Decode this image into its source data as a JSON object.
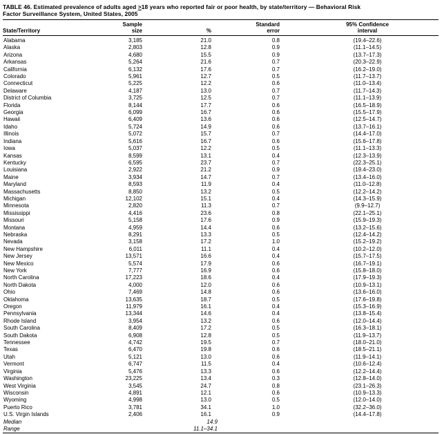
{
  "page": {
    "title_pre": "TABLE 46. Estimated prevalence of adults aged ",
    "title_geq": ">",
    "title_post": "18 years who reported fair or poor health, by state/territory — Behavioral Risk\nFactor Surveillance System, United States, 2005"
  },
  "table": {
    "columns": [
      {
        "key": "state",
        "label": "State/Territory"
      },
      {
        "key": "sample",
        "label": "Sample\nsize"
      },
      {
        "key": "pct",
        "label": "%"
      },
      {
        "key": "se",
        "label": "Standard\nerror"
      },
      {
        "key": "ci",
        "label": "95% Confidence\ninterval"
      }
    ],
    "rows": [
      {
        "state": "Alabama",
        "sample": "3,185",
        "pct": "21.0",
        "se": "0.8",
        "ci": "(19.4–22.6)"
      },
      {
        "state": "Alaska",
        "sample": "2,803",
        "pct": "12.8",
        "se": "0.9",
        "ci": "(11.1–14.5)"
      },
      {
        "state": "Arizona",
        "sample": "4,680",
        "pct": "15.5",
        "se": "0.9",
        "ci": "(13.7–17.3)"
      },
      {
        "state": "Arkansas",
        "sample": "5,264",
        "pct": "21.6",
        "se": "0.7",
        "ci": "(20.3–22.9)"
      },
      {
        "state": "California",
        "sample": "6,132",
        "pct": "17.6",
        "se": "0.7",
        "ci": "(16.2–19.0)"
      },
      {
        "state": "Colorado",
        "sample": "5,961",
        "pct": "12.7",
        "se": "0.5",
        "ci": "(11.7–13.7)"
      },
      {
        "state": "Connecticut",
        "sample": "5,225",
        "pct": "12.2",
        "se": "0.6",
        "ci": "(11.0–13.4)"
      },
      {
        "state": "Delaware",
        "sample": "4,187",
        "pct": "13.0",
        "se": "0.7",
        "ci": "(11.7–14.3)"
      },
      {
        "state": "District of Columbia",
        "sample": "3,725",
        "pct": "12.5",
        "se": "0.7",
        "ci": "(11.1–13.9)"
      },
      {
        "state": "Florida",
        "sample": "8,144",
        "pct": "17.7",
        "se": "0.6",
        "ci": "(16.5–18.9)"
      },
      {
        "state": "Georgia",
        "sample": "6,099",
        "pct": "16.7",
        "se": "0.6",
        "ci": "(15.5–17.9)"
      },
      {
        "state": "Hawaii",
        "sample": "6,409",
        "pct": "13.6",
        "se": "0.6",
        "ci": "(12.5–14.7)"
      },
      {
        "state": "Idaho",
        "sample": "5,724",
        "pct": "14.9",
        "se": "0.6",
        "ci": "(13.7–16.1)"
      },
      {
        "state": "Illinois",
        "sample": "5,072",
        "pct": "15.7",
        "se": "0.7",
        "ci": "(14.4–17.0)"
      },
      {
        "state": "Indiana",
        "sample": "5,616",
        "pct": "16.7",
        "se": "0.6",
        "ci": "(15.6–17.8)"
      },
      {
        "state": "Iowa",
        "sample": "5,037",
        "pct": "12.2",
        "se": "0.5",
        "ci": "(11.1–13.3)"
      },
      {
        "state": "Kansas",
        "sample": "8,599",
        "pct": "13.1",
        "se": "0.4",
        "ci": "(12.3–13.9)"
      },
      {
        "state": "Kentucky",
        "sample": "6,595",
        "pct": "23.7",
        "se": "0.7",
        "ci": "(22.3–25.1)"
      },
      {
        "state": "Louisiana",
        "sample": "2,922",
        "pct": "21.2",
        "se": "0.9",
        "ci": "(19.4–23.0)"
      },
      {
        "state": "Maine",
        "sample": "3,934",
        "pct": "14.7",
        "se": "0.7",
        "ci": "(13.4–16.0)"
      },
      {
        "state": "Maryland",
        "sample": "8,593",
        "pct": "11.9",
        "se": "0.4",
        "ci": "(11.0–12.8)"
      },
      {
        "state": "Massachusetts",
        "sample": "8,850",
        "pct": "13.2",
        "se": "0.5",
        "ci": "(12.2–14.2)"
      },
      {
        "state": "Michigan",
        "sample": "12,102",
        "pct": "15.1",
        "se": "0.4",
        "ci": "(14.3–15.9)"
      },
      {
        "state": "Minnesota",
        "sample": "2,820",
        "pct": "11.3",
        "se": "0.7",
        "ci": "(9.9–12.7)"
      },
      {
        "state": "Mississippi",
        "sample": "4,416",
        "pct": "23.6",
        "se": "0.8",
        "ci": "(22.1–25.1)"
      },
      {
        "state": "Missouri",
        "sample": "5,158",
        "pct": "17.6",
        "se": "0.9",
        "ci": "(15.9–19.3)"
      },
      {
        "state": "Montana",
        "sample": "4,959",
        "pct": "14.4",
        "se": "0.6",
        "ci": "(13.2–15.6)"
      },
      {
        "state": "Nebraska",
        "sample": "8,291",
        "pct": "13.3",
        "se": "0.5",
        "ci": "(12.4–14.2)"
      },
      {
        "state": "Nevada",
        "sample": "3,158",
        "pct": "17.2",
        "se": "1.0",
        "ci": "(15.2–19.2)"
      },
      {
        "state": "New Hampshire",
        "sample": "6,011",
        "pct": "11.1",
        "se": "0.4",
        "ci": "(10.2–12.0)"
      },
      {
        "state": "New Jersey",
        "sample": "13,571",
        "pct": "16.6",
        "se": "0.4",
        "ci": "(15.7–17.5)"
      },
      {
        "state": "New Mexico",
        "sample": "5,574",
        "pct": "17.9",
        "se": "0.6",
        "ci": "(16.7–19.1)"
      },
      {
        "state": "New York",
        "sample": "7,777",
        "pct": "16.9",
        "se": "0.6",
        "ci": "(15.8–18.0)"
      },
      {
        "state": "North Carolina",
        "sample": "17,223",
        "pct": "18.6",
        "se": "0.4",
        "ci": "(17.9–19.3)"
      },
      {
        "state": "North Dakota",
        "sample": "4,000",
        "pct": "12.0",
        "se": "0.6",
        "ci": "(10.9–13.1)"
      },
      {
        "state": "Ohio",
        "sample": "7,469",
        "pct": "14.8",
        "se": "0.6",
        "ci": "(13.6–16.0)"
      },
      {
        "state": "Oklahoma",
        "sample": "13,635",
        "pct": "18.7",
        "se": "0.5",
        "ci": "(17.6–19.8)"
      },
      {
        "state": "Oregon",
        "sample": "11,979",
        "pct": "16.1",
        "se": "0.4",
        "ci": "(15.3–16.9)"
      },
      {
        "state": "Pennsylvania",
        "sample": "13,344",
        "pct": "14.6",
        "se": "0.4",
        "ci": "(13.8–15.4)"
      },
      {
        "state": "Rhode Island",
        "sample": "3,954",
        "pct": "13.2",
        "se": "0.6",
        "ci": "(12.0–14.4)"
      },
      {
        "state": "South Carolina",
        "sample": "8,409",
        "pct": "17.2",
        "se": "0.5",
        "ci": "(16.3–18.1)"
      },
      {
        "state": "South Dakota",
        "sample": "6,908",
        "pct": "12.8",
        "se": "0.5",
        "ci": "(11.9–13.7)"
      },
      {
        "state": "Tennessee",
        "sample": "4,742",
        "pct": "19.5",
        "se": "0.7",
        "ci": "(18.0–21.0)"
      },
      {
        "state": "Texas",
        "sample": "6,470",
        "pct": "19.8",
        "se": "0.6",
        "ci": "(18.5–21.1)"
      },
      {
        "state": "Utah",
        "sample": "5,121",
        "pct": "13.0",
        "se": "0.6",
        "ci": "(11.9–14.1)"
      },
      {
        "state": "Vermont",
        "sample": "6,747",
        "pct": "11.5",
        "se": "0.4",
        "ci": "(10.6–12.4)"
      },
      {
        "state": "Virginia",
        "sample": "5,476",
        "pct": "13.3",
        "se": "0.6",
        "ci": "(12.2–14.4)"
      },
      {
        "state": "Washington",
        "sample": "23,225",
        "pct": "13.4",
        "se": "0.3",
        "ci": "(12.8–14.0)"
      },
      {
        "state": "West Virginia",
        "sample": "3,545",
        "pct": "24.7",
        "se": "0.8",
        "ci": "(23.1–26.3)"
      },
      {
        "state": "Wisconsin",
        "sample": "4,891",
        "pct": "12.1",
        "se": "0.6",
        "ci": "(10.9–13.3)"
      },
      {
        "state": "Wyoming",
        "sample": "4,998",
        "pct": "13.0",
        "se": "0.5",
        "ci": "(12.0–14.0)"
      },
      {
        "state": "Puerto Rico",
        "sample": "3,781",
        "pct": "34.1",
        "se": "1.0",
        "ci": "(32.2–36.0)"
      },
      {
        "state": "U.S. Virgin Islands",
        "sample": "2,406",
        "pct": "16.1",
        "se": "0.9",
        "ci": "(14.4–17.8)"
      },
      {
        "state": "Median",
        "sample": "",
        "pct": "14.9",
        "se": "",
        "ci": "",
        "italic": true
      },
      {
        "state": "Range",
        "sample": "",
        "pct": "11.1–34.1",
        "se": "",
        "ci": "",
        "italic": true
      }
    ]
  }
}
